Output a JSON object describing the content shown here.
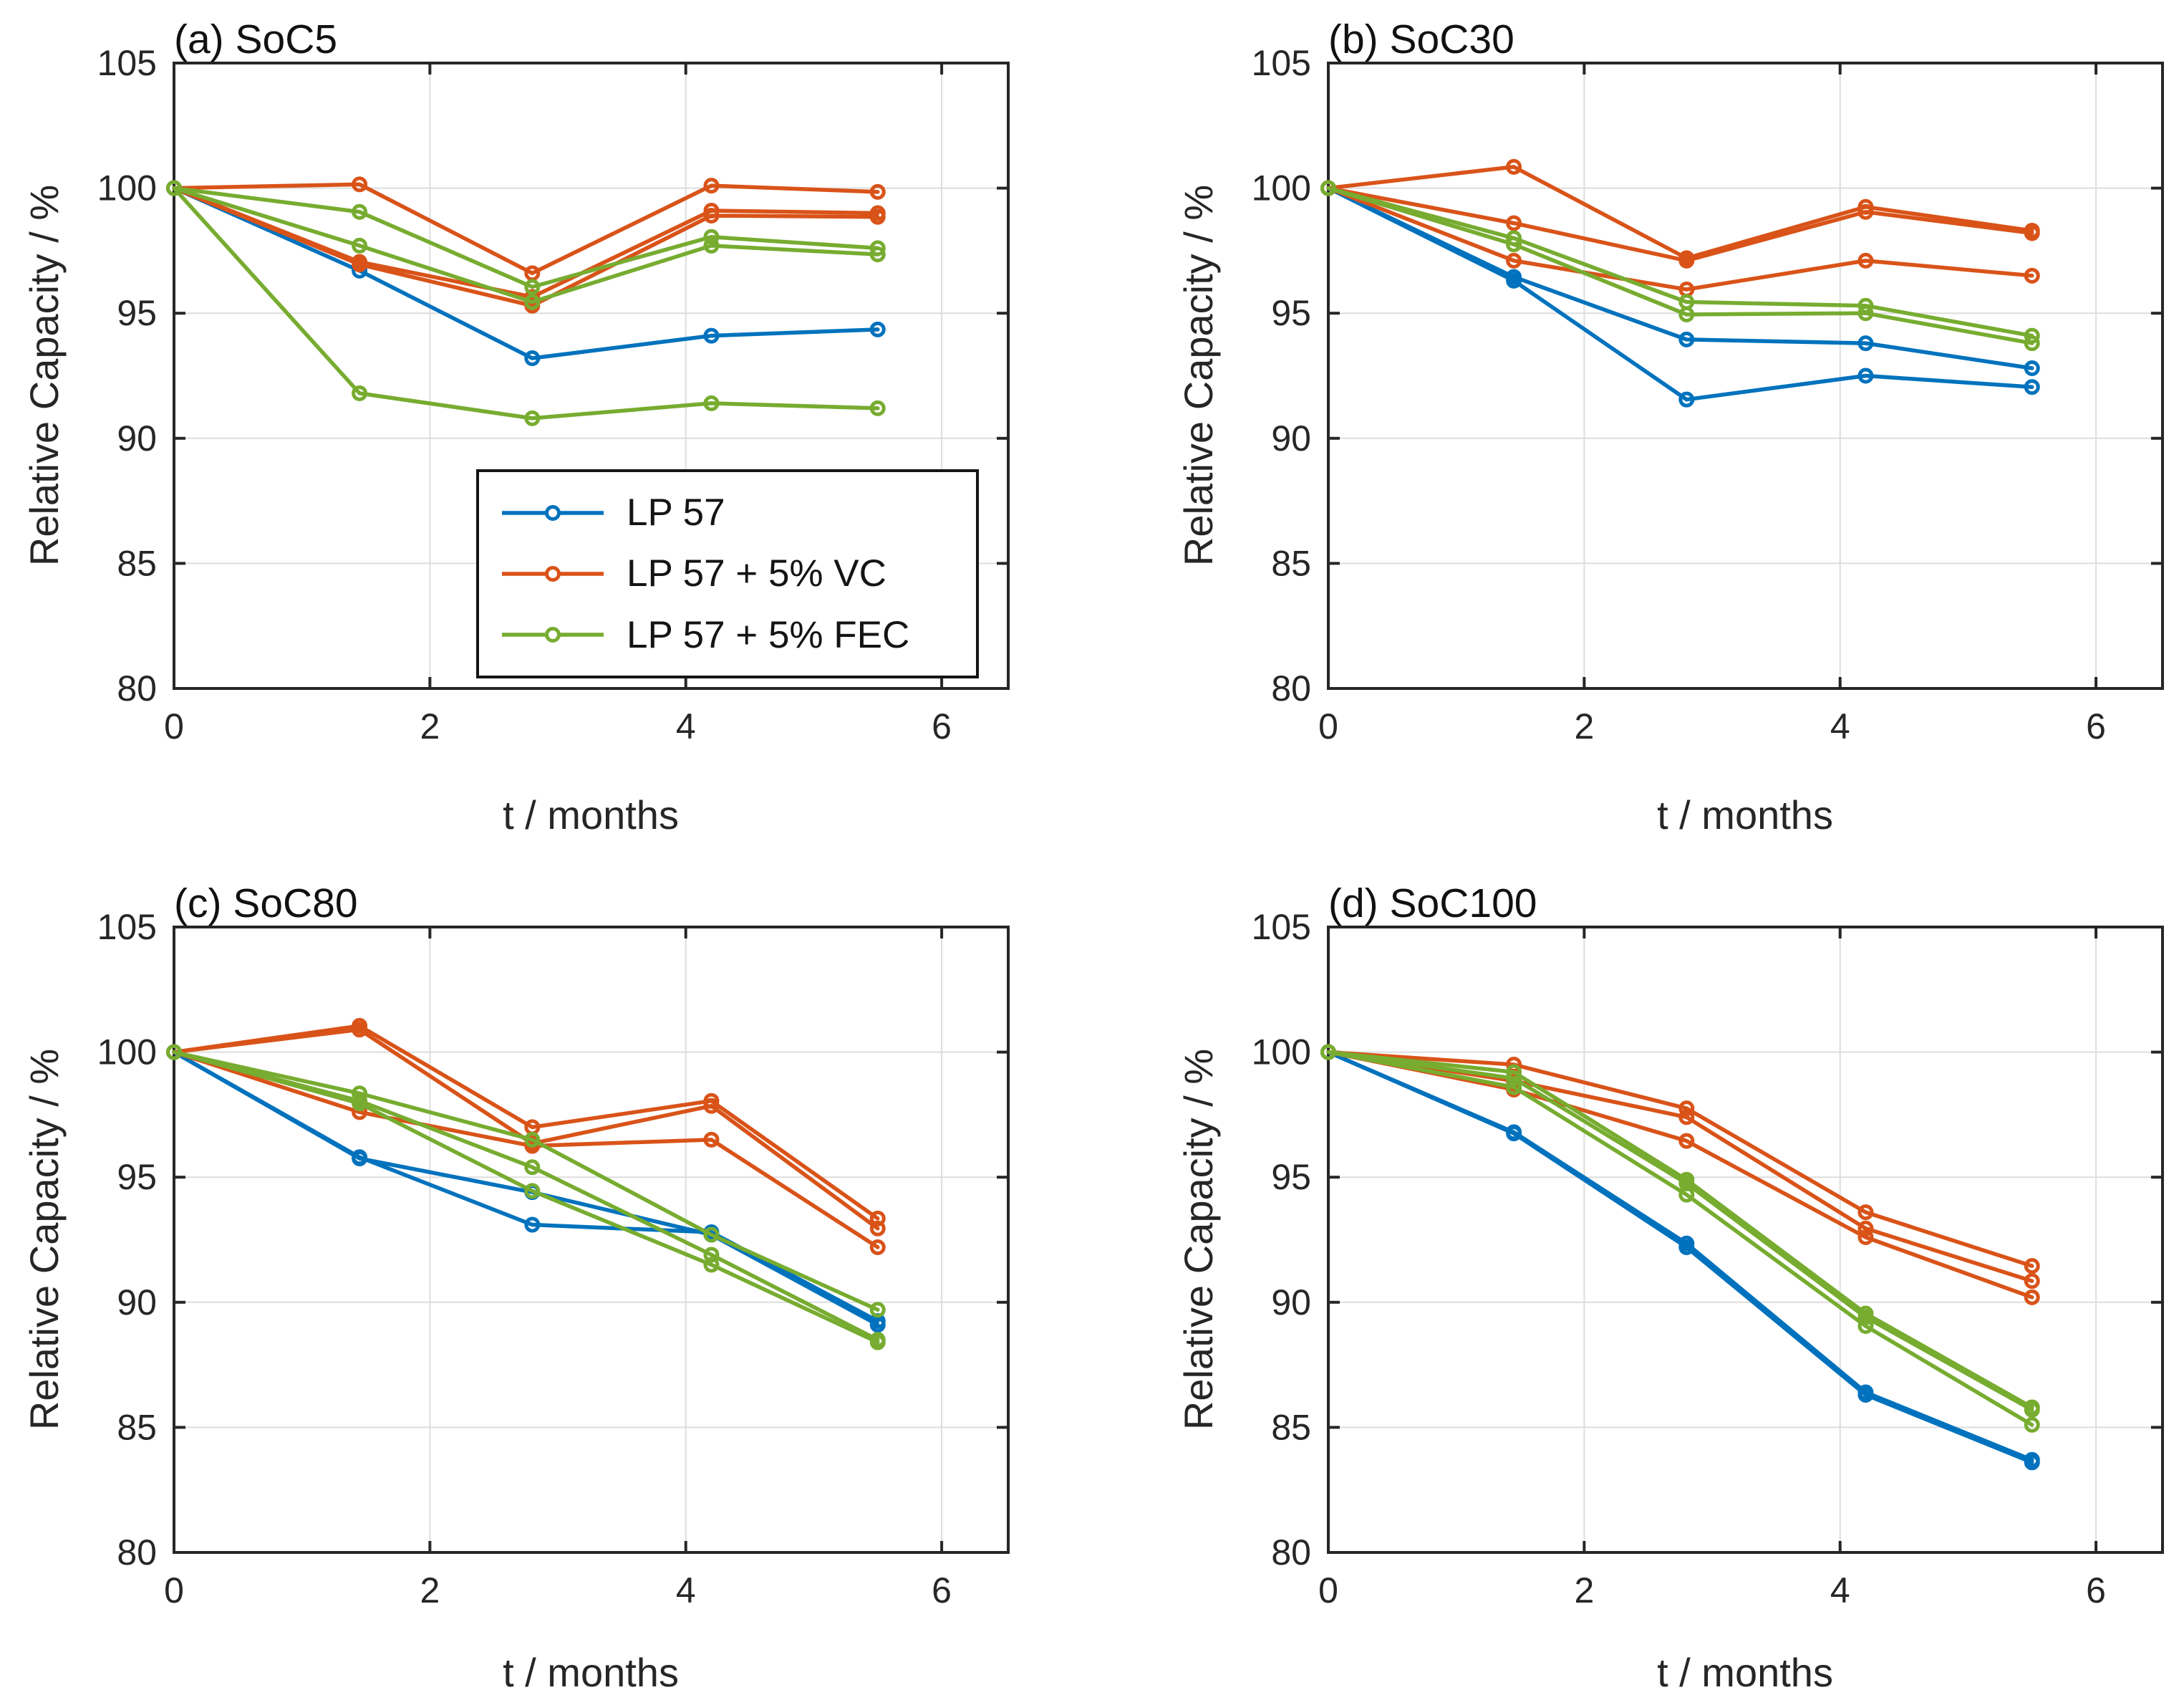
{
  "page": {
    "background": "#ffffff"
  },
  "colors": {
    "blue": "#0072BD",
    "orange": "#D95319",
    "green": "#77AC30",
    "axis": "#262626",
    "grid": "#DDDDDD",
    "title_text": "#111111"
  },
  "legend": {
    "shown_on_chart": "a",
    "position": "inside lower-right of chart (a)",
    "items": [
      {
        "label": "LP 57",
        "color": "blue"
      },
      {
        "label": "LP 57 + 5% VC",
        "color": "orange"
      },
      {
        "label": "LP 57 + 5% FEC",
        "color": "green"
      }
    ]
  },
  "axes": {
    "xlabel": "t / months",
    "ylabel": "Relative Capacity / %",
    "xlim": [
      0,
      6.52
    ],
    "ylim": [
      80,
      105
    ],
    "xticks": [
      0,
      2,
      4,
      6
    ],
    "yticks": [
      80,
      85,
      90,
      95,
      100,
      105
    ],
    "grid": true
  },
  "chart_data": [
    {
      "id": "a",
      "type": "line",
      "title": "(a) SoC5",
      "xlabel": "t / months",
      "ylabel": "Relative Capacity / %",
      "xlim": [
        0,
        6.52
      ],
      "ylim": [
        80,
        105
      ],
      "x": [
        0,
        1.45,
        2.8,
        4.2,
        5.5
      ],
      "series": [
        {
          "name": "LP 57 cell 1",
          "legend": "LP 57",
          "color": "blue",
          "values": [
            100,
            96.7,
            93.2,
            94.1,
            94.35
          ]
        },
        {
          "name": "LP 57 + 5% VC cell 1",
          "legend": "LP 57 + 5% VC",
          "color": "orange",
          "values": [
            100,
            100.15,
            96.6,
            100.1,
            99.85
          ]
        },
        {
          "name": "LP 57 + 5% VC cell 2",
          "legend": "LP 57 + 5% VC",
          "color": "orange",
          "values": [
            100,
            97.05,
            95.65,
            99.1,
            99.0
          ]
        },
        {
          "name": "LP 57 + 5% VC cell 3",
          "legend": "LP 57 + 5% VC",
          "color": "orange",
          "values": [
            100,
            96.95,
            95.3,
            98.9,
            98.85
          ]
        },
        {
          "name": "LP 57 + 5% FEC cell 1",
          "legend": "LP 57 + 5% FEC",
          "color": "green",
          "values": [
            100,
            99.05,
            96.05,
            98.05,
            97.6
          ]
        },
        {
          "name": "LP 57 + 5% FEC cell 2",
          "legend": "LP 57 + 5% FEC",
          "color": "green",
          "values": [
            100,
            97.7,
            95.45,
            97.7,
            97.35
          ]
        },
        {
          "name": "LP 57 + 5% FEC cell 3",
          "legend": "LP 57 + 5% FEC",
          "color": "green",
          "values": [
            100,
            91.8,
            90.8,
            91.4,
            91.2
          ]
        }
      ]
    },
    {
      "id": "b",
      "type": "line",
      "title": "(b) SoC30",
      "xlabel": "t / months",
      "ylabel": "Relative Capacity / %",
      "xlim": [
        0,
        6.52
      ],
      "ylim": [
        80,
        105
      ],
      "x": [
        0,
        1.45,
        2.8,
        4.2,
        5.5
      ],
      "series": [
        {
          "name": "LP 57 cell 1",
          "legend": "LP 57",
          "color": "blue",
          "values": [
            100,
            96.45,
            93.95,
            93.8,
            92.8
          ]
        },
        {
          "name": "LP 57 cell 2",
          "legend": "LP 57",
          "color": "blue",
          "values": [
            100,
            96.3,
            91.55,
            92.5,
            92.05
          ]
        },
        {
          "name": "LP 57 + 5% VC cell 1",
          "legend": "LP 57 + 5% VC",
          "color": "orange",
          "values": [
            100,
            100.85,
            97.2,
            99.25,
            98.3
          ]
        },
        {
          "name": "LP 57 + 5% VC cell 2",
          "legend": "LP 57 + 5% VC",
          "color": "orange",
          "values": [
            100,
            98.6,
            97.1,
            99.05,
            98.2
          ]
        },
        {
          "name": "LP 57 + 5% VC cell 3",
          "legend": "LP 57 + 5% VC",
          "color": "orange",
          "values": [
            100,
            97.1,
            95.95,
            97.1,
            96.5
          ]
        },
        {
          "name": "LP 57 + 5% FEC cell 1",
          "legend": "LP 57 + 5% FEC",
          "color": "green",
          "values": [
            100,
            98.0,
            95.45,
            95.3,
            94.1
          ]
        },
        {
          "name": "LP 57 + 5% FEC cell 2",
          "legend": "LP 57 + 5% FEC",
          "color": "green",
          "values": [
            100,
            97.75,
            94.95,
            95.0,
            93.8
          ]
        }
      ]
    },
    {
      "id": "c",
      "type": "line",
      "title": "(c) SoC80",
      "xlabel": "t / months",
      "ylabel": "Relative Capacity / %",
      "xlim": [
        0,
        6.52
      ],
      "ylim": [
        80,
        105
      ],
      "x": [
        0,
        1.45,
        2.8,
        4.2,
        5.5
      ],
      "series": [
        {
          "name": "LP 57 cell 1",
          "legend": "LP 57",
          "color": "blue",
          "values": [
            100,
            95.8,
            93.1,
            92.8,
            89.25
          ]
        },
        {
          "name": "LP 57 cell 2",
          "legend": "LP 57",
          "color": "blue",
          "values": [
            100,
            95.75,
            94.4,
            92.7,
            89.1
          ]
        },
        {
          "name": "LP 57 + 5% VC cell 1",
          "legend": "LP 57 + 5% VC",
          "color": "orange",
          "values": [
            100,
            101.05,
            97.0,
            98.05,
            93.35
          ]
        },
        {
          "name": "LP 57 + 5% VC cell 2",
          "legend": "LP 57 + 5% VC",
          "color": "orange",
          "values": [
            100,
            100.9,
            96.35,
            97.85,
            92.95
          ]
        },
        {
          "name": "LP 57 + 5% VC cell 3",
          "legend": "LP 57 + 5% VC",
          "color": "orange",
          "values": [
            100,
            97.6,
            96.25,
            96.5,
            92.2
          ]
        },
        {
          "name": "LP 57 + 5% FEC cell 1",
          "legend": "LP 57 + 5% FEC",
          "color": "green",
          "values": [
            100,
            98.35,
            96.5,
            92.7,
            89.7
          ]
        },
        {
          "name": "LP 57 + 5% FEC cell 2",
          "legend": "LP 57 + 5% FEC",
          "color": "green",
          "values": [
            100,
            98.05,
            95.4,
            91.9,
            88.5
          ]
        },
        {
          "name": "LP 57 + 5% FEC cell 3",
          "legend": "LP 57 + 5% FEC",
          "color": "green",
          "values": [
            100,
            97.95,
            94.45,
            91.5,
            88.4
          ]
        }
      ]
    },
    {
      "id": "d",
      "type": "line",
      "title": "(d) SoC100",
      "xlabel": "t / months",
      "ylabel": "Relative Capacity / %",
      "xlim": [
        0,
        6.52
      ],
      "ylim": [
        80,
        105
      ],
      "x": [
        0,
        1.45,
        2.8,
        4.2,
        5.5
      ],
      "series": [
        {
          "name": "LP 57 cell 1",
          "legend": "LP 57",
          "color": "blue",
          "values": [
            100,
            96.8,
            92.35,
            86.4,
            83.7
          ]
        },
        {
          "name": "LP 57 cell 2",
          "legend": "LP 57",
          "color": "blue",
          "values": [
            100,
            96.75,
            92.2,
            86.3,
            83.6
          ]
        },
        {
          "name": "LP 57 + 5% VC cell 1",
          "legend": "LP 57 + 5% VC",
          "color": "orange",
          "values": [
            100,
            99.5,
            97.75,
            93.6,
            91.45
          ]
        },
        {
          "name": "LP 57 + 5% VC cell 2",
          "legend": "LP 57 + 5% VC",
          "color": "orange",
          "values": [
            100,
            98.85,
            97.4,
            92.95,
            90.85
          ]
        },
        {
          "name": "LP 57 + 5% VC cell 3",
          "legend": "LP 57 + 5% VC",
          "color": "orange",
          "values": [
            100,
            98.5,
            96.45,
            92.6,
            90.2
          ]
        },
        {
          "name": "LP 57 + 5% FEC cell 1",
          "legend": "LP 57 + 5% FEC",
          "color": "green",
          "values": [
            100,
            99.2,
            94.9,
            89.55,
            85.8
          ]
        },
        {
          "name": "LP 57 + 5% FEC cell 2",
          "legend": "LP 57 + 5% FEC",
          "color": "green",
          "values": [
            100,
            98.95,
            94.75,
            89.4,
            85.7
          ]
        },
        {
          "name": "LP 57 + 5% FEC cell 3",
          "legend": "LP 57 + 5% FEC",
          "color": "green",
          "values": [
            100,
            98.6,
            94.3,
            89.05,
            85.1
          ]
        }
      ]
    }
  ]
}
